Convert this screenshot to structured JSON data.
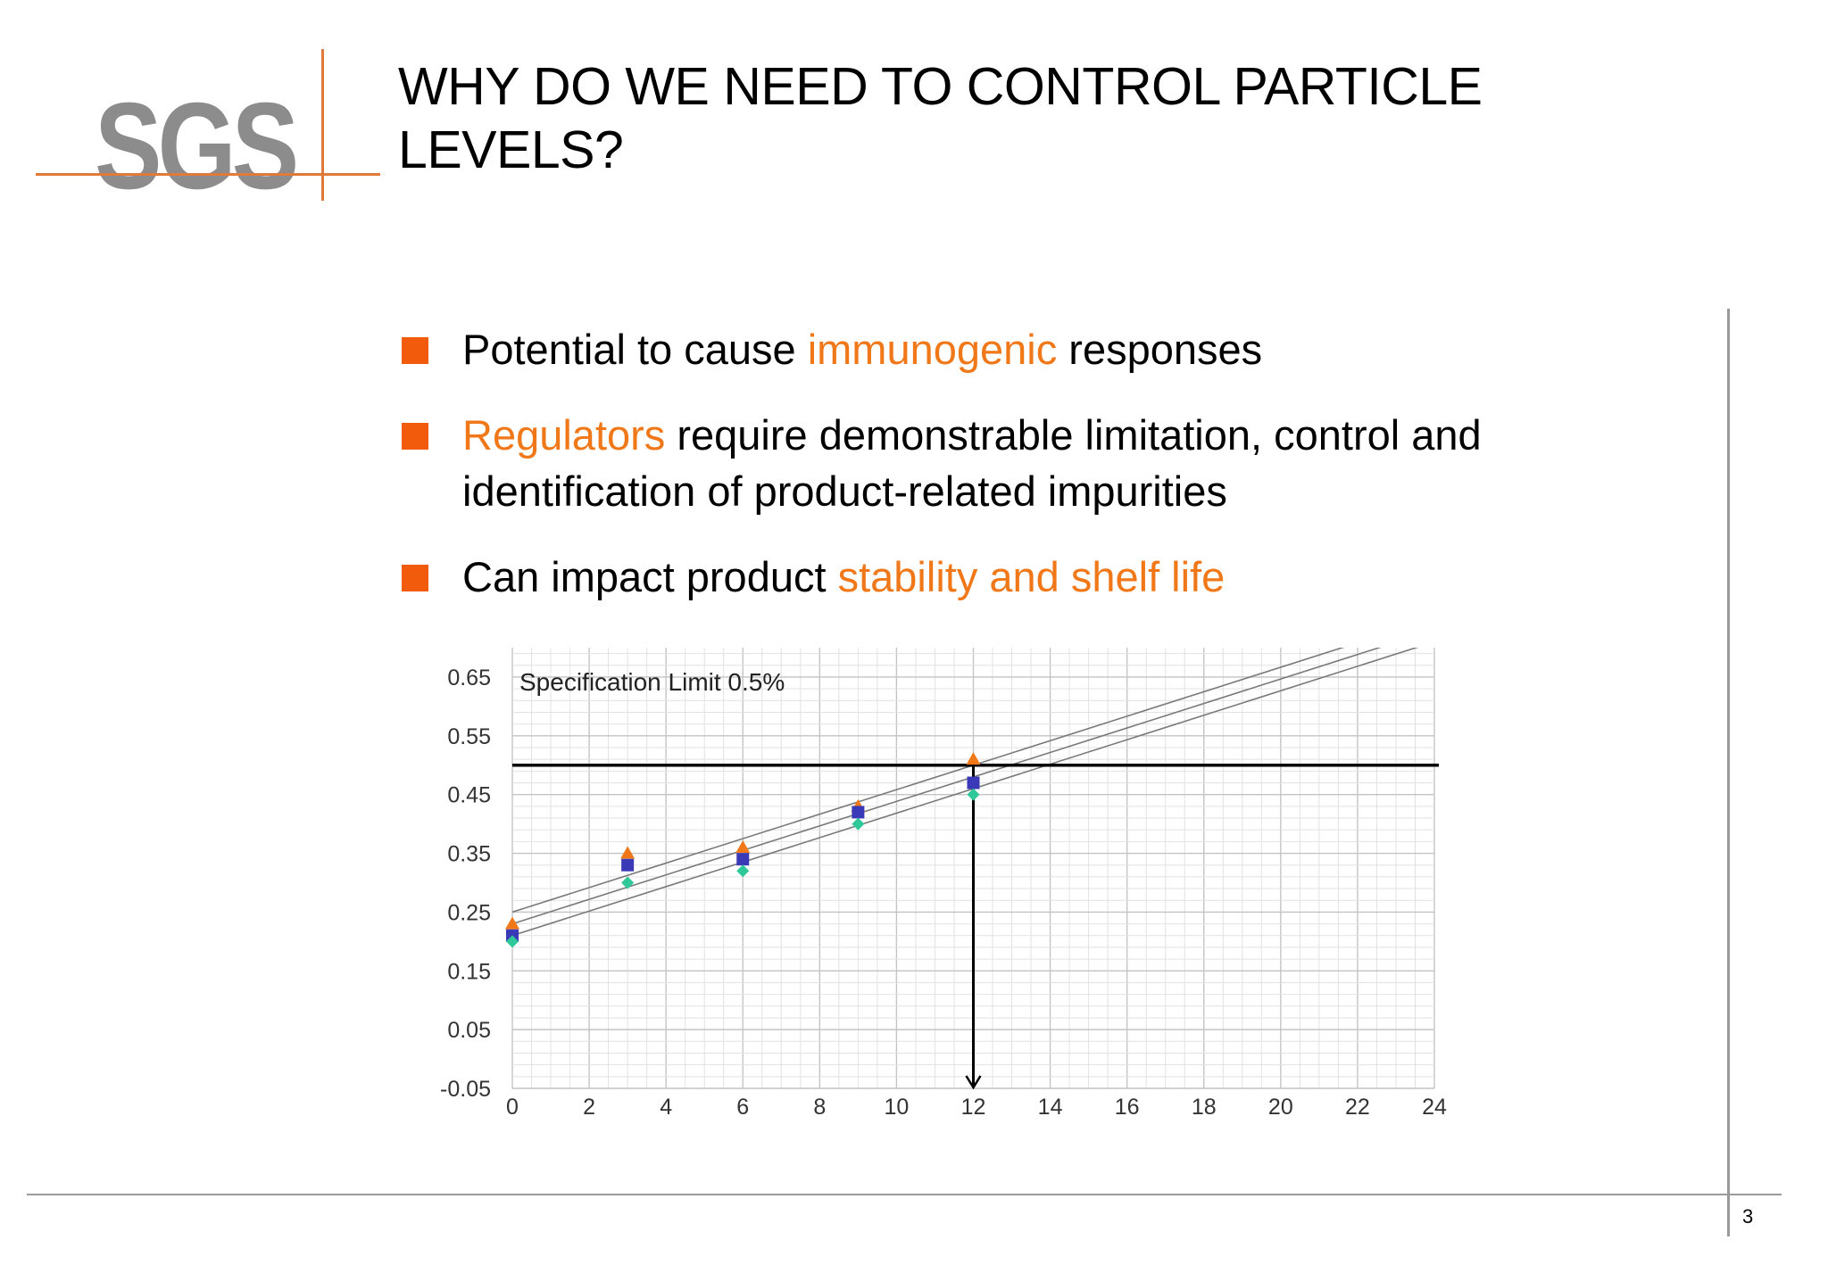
{
  "logo": {
    "text": "SGS"
  },
  "title": "WHY DO WE NEED TO CONTROL PARTICLE LEVELS?",
  "bullets": [
    {
      "before": "Potential to cause ",
      "highlight": "immunogenic",
      "after": " responses"
    },
    {
      "before": "",
      "highlight": "Regulators",
      "after": " require demonstrable limitation, control and identification of product-related impurities"
    },
    {
      "before": "Can impact product ",
      "highlight": "stability and shelf life",
      "after": ""
    }
  ],
  "page_number": "3",
  "colors": {
    "accent_orange": "#f07818",
    "bullet_square": "#f25a0c",
    "logo_gray": "#8c8c8c",
    "series_triangle": "#f07818",
    "series_square": "#3a3ab8",
    "series_diamond": "#2ec89a"
  },
  "chart_data": {
    "type": "scatter",
    "annotation": "Specification Limit 0.5%",
    "x_ticks": [
      "0",
      "2",
      "4",
      "6",
      "8",
      "10",
      "12",
      "14",
      "16",
      "18",
      "20",
      "22",
      "24"
    ],
    "y_ticks": [
      "0.65",
      "0.55",
      "0.45",
      "0.35",
      "0.25",
      "0.15",
      "0.05",
      "-0.05"
    ],
    "xlim": [
      0,
      24
    ],
    "ylim": [
      -0.05,
      0.7
    ],
    "grid": true,
    "spec_limit": 0.5,
    "spec_intercept_x": 12,
    "series": [
      {
        "marker": "triangle",
        "color": "#f07818",
        "x": [
          0,
          3,
          6,
          9,
          12
        ],
        "y": [
          0.23,
          0.35,
          0.36,
          0.43,
          0.51
        ]
      },
      {
        "marker": "square",
        "color": "#3a3ab8",
        "x": [
          0,
          3,
          6,
          9,
          12
        ],
        "y": [
          0.21,
          0.33,
          0.34,
          0.42,
          0.47
        ]
      },
      {
        "marker": "diamond",
        "color": "#2ec89a",
        "x": [
          0,
          3,
          6,
          9,
          12
        ],
        "y": [
          0.2,
          0.3,
          0.32,
          0.4,
          0.45
        ]
      }
    ],
    "lines": [
      {
        "x": [
          0,
          24
        ],
        "y": [
          0.25,
          0.75
        ]
      },
      {
        "x": [
          0,
          24
        ],
        "y": [
          0.23,
          0.73
        ]
      },
      {
        "x": [
          0,
          24
        ],
        "y": [
          0.21,
          0.71
        ]
      }
    ]
  }
}
